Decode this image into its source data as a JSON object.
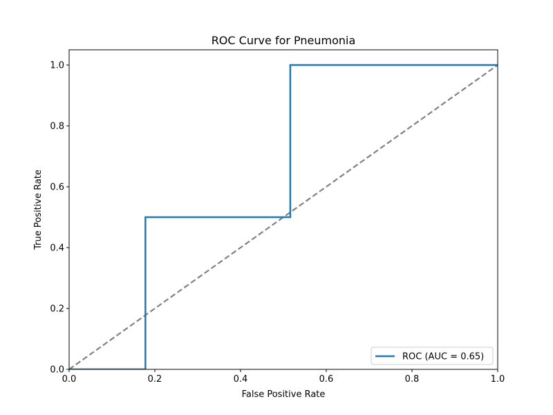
{
  "chart_data": {
    "type": "line",
    "title": "ROC Curve for Pneumonia",
    "xlabel": "False Positive Rate",
    "ylabel": "True Positive Rate",
    "xlim": [
      0.0,
      1.0
    ],
    "ylim": [
      0.0,
      1.05
    ],
    "xticks": [
      "0.0",
      "0.2",
      "0.4",
      "0.6",
      "0.8",
      "1.0"
    ],
    "yticks": [
      "0.0",
      "0.2",
      "0.4",
      "0.6",
      "0.8",
      "1.0"
    ],
    "grid": false,
    "legend_position": "lower right",
    "series": [
      {
        "name": "ROC (AUC = 0.65)",
        "color": "#1f77b4",
        "style": "solid",
        "x": [
          0.0,
          0.178,
          0.178,
          0.516,
          0.516,
          1.0
        ],
        "y": [
          0.0,
          0.0,
          0.5,
          0.5,
          1.0,
          1.0
        ]
      },
      {
        "color": "#808080",
        "style": "dashed",
        "x": [
          0.0,
          1.0
        ],
        "y": [
          0.0,
          1.0
        ]
      }
    ]
  }
}
